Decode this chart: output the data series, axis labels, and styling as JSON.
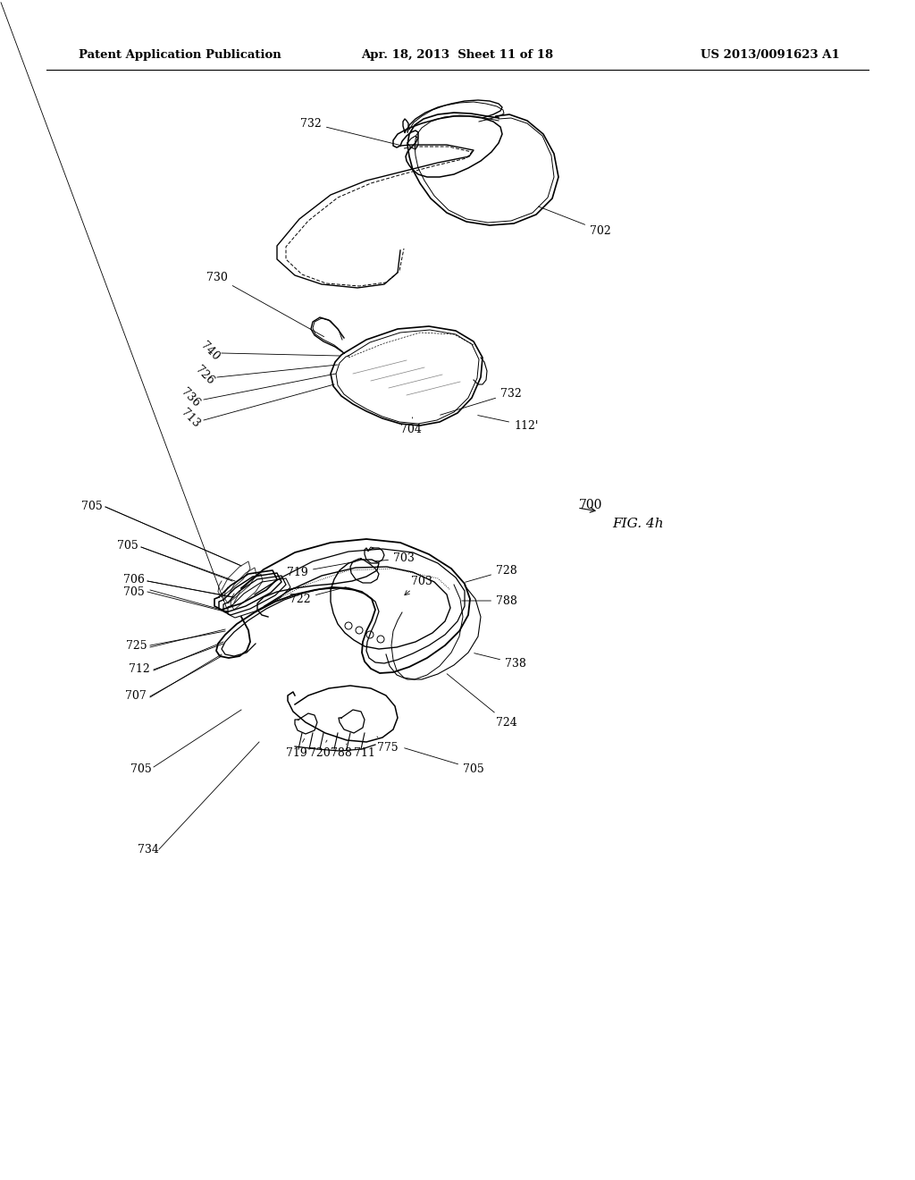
{
  "background_color": "#ffffff",
  "header_left": "Patent Application Publication",
  "header_center": "Apr. 18, 2013  Sheet 11 of 18",
  "header_right": "US 2013/0091623 A1",
  "fig_label": "FIG. 4h",
  "patent_number": "700"
}
